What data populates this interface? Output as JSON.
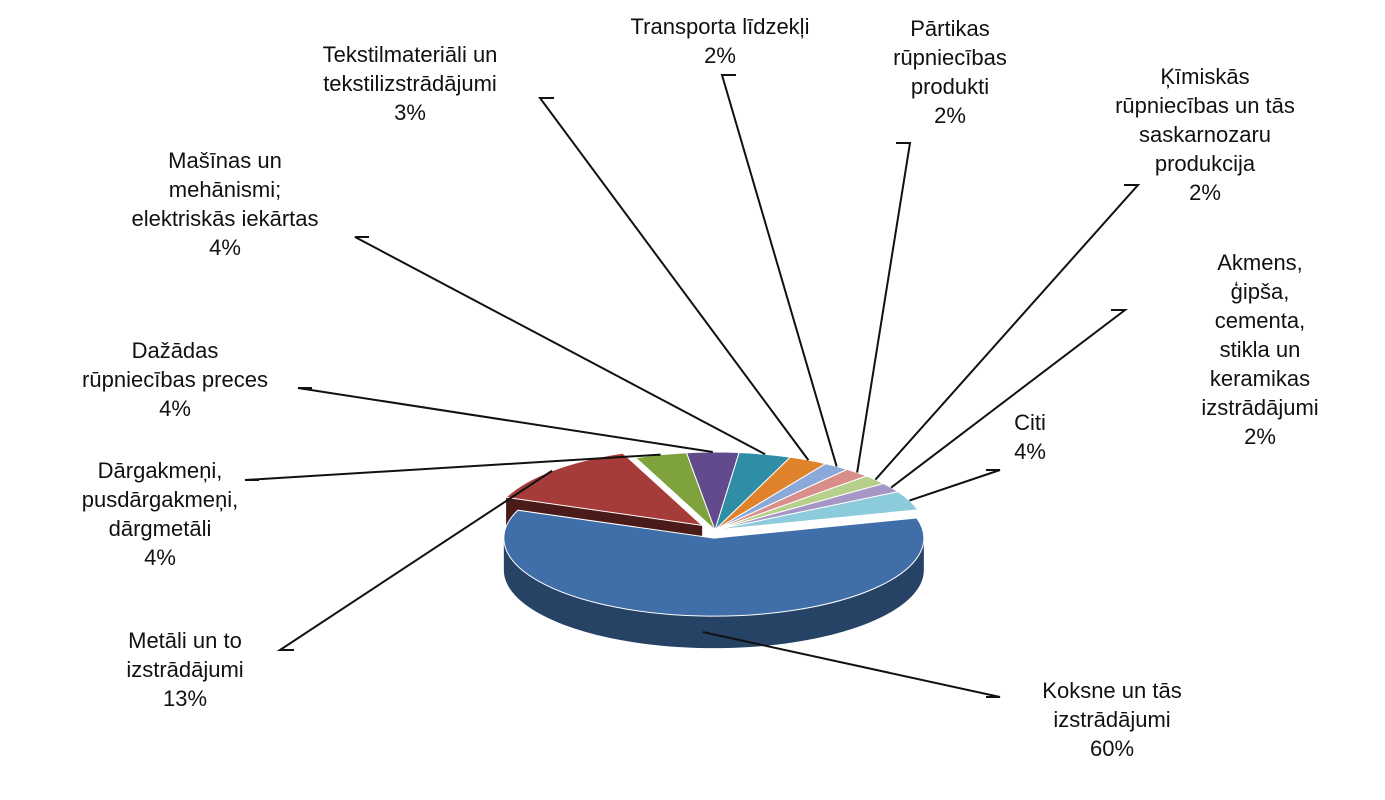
{
  "chart_data": {
    "type": "pie",
    "categories": [
      "Koksne un tās\nizstrādājumi",
      "Metāli un to\nizstrādājumi",
      "Dārgakmeņi,\npusdārgakmeņi,\ndārgmetāli",
      "Dažādas\nrūpniecības preces",
      "Mašīnas un\nmehānismi;\nelektriskās iekārtas",
      "Tekstilmateriāli un\ntekstilizstrādājumi",
      "Transporta līdzekļi",
      "Pārtikas\nrūpniecības\nprodukti",
      "Ķīmiskās\nrūpniecības un tās\nsaskarnozaru\nprodukcija",
      "Akmens, ģipša,\ncementa, stikla un\nkeramikas\nizstrādājumi",
      "Citi"
    ],
    "values": [
      60,
      13,
      4,
      4,
      4,
      3,
      2,
      2,
      2,
      2,
      4
    ],
    "value_labels": [
      "60%",
      "13%",
      "4%",
      "4%",
      "4%",
      "3%",
      "2%",
      "2%",
      "2%",
      "2%",
      "4%"
    ],
    "colors": [
      "#3f6ea8",
      "#a63c39",
      "#7fa33c",
      "#634a8c",
      "#2f8ea6",
      "#e0822c",
      "#8aa8d8",
      "#d98e8c",
      "#b6cf8a",
      "#a696c6",
      "#8ccbdb"
    ]
  }
}
